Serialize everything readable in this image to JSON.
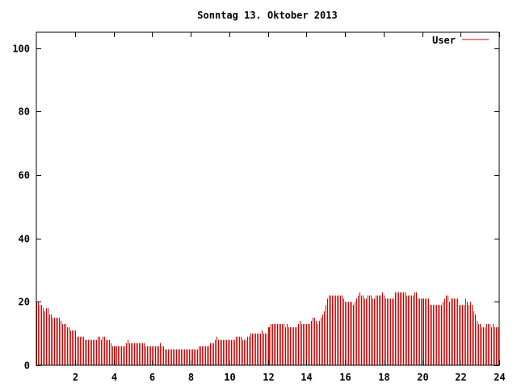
{
  "chart_data": {
    "type": "bar",
    "title": "Sonntag 13. Oktober 2013",
    "xlabel": "",
    "ylabel": "",
    "xlim": [
      0,
      24
    ],
    "ylim": [
      0,
      105
    ],
    "xticks": [
      2,
      4,
      6,
      8,
      10,
      12,
      14,
      16,
      18,
      20,
      22,
      24
    ],
    "yticks": [
      0,
      20,
      40,
      60,
      80,
      100
    ],
    "grid": false,
    "legend": "top-right",
    "series": [
      {
        "name": "User",
        "color": "#cc0000",
        "interval_minutes": 5,
        "values": [
          20,
          20,
          19,
          19,
          18,
          17,
          18,
          18,
          16,
          16,
          15,
          15,
          15,
          15,
          15,
          14,
          13,
          13,
          13,
          12,
          12,
          11,
          11,
          11,
          11,
          9,
          9,
          9,
          9,
          9,
          8,
          8,
          8,
          8,
          8,
          8,
          8,
          8,
          9,
          9,
          8,
          9,
          9,
          8,
          8,
          8,
          7,
          6,
          6,
          6,
          6,
          6,
          6,
          6,
          6,
          6,
          7,
          8,
          7,
          7,
          7,
          7,
          7,
          7,
          7,
          7,
          7,
          7,
          6,
          6,
          6,
          6,
          6,
          6,
          6,
          6,
          6,
          7,
          6,
          6,
          5,
          5,
          5,
          5,
          5,
          5,
          5,
          5,
          5,
          5,
          5,
          5,
          5,
          5,
          5,
          5,
          5,
          5,
          5,
          5,
          5,
          6,
          6,
          6,
          6,
          6,
          6,
          6,
          7,
          7,
          7,
          8,
          9,
          8,
          8,
          8,
          8,
          8,
          8,
          8,
          8,
          8,
          8,
          8,
          9,
          9,
          9,
          9,
          8,
          8,
          8,
          9,
          9,
          10,
          10,
          10,
          10,
          10,
          10,
          10,
          11,
          10,
          10,
          10,
          12,
          12,
          13,
          13,
          13,
          13,
          13,
          13,
          13,
          13,
          13,
          12,
          13,
          12,
          12,
          12,
          12,
          12,
          12,
          13,
          14,
          13,
          13,
          13,
          13,
          13,
          13,
          14,
          15,
          15,
          14,
          13,
          14,
          15,
          16,
          17,
          19,
          21,
          22,
          22,
          22,
          22,
          22,
          22,
          22,
          22,
          22,
          21,
          20,
          20,
          20,
          20,
          20,
          19,
          20,
          21,
          22,
          23,
          22,
          22,
          21,
          21,
          22,
          22,
          22,
          21,
          21,
          22,
          22,
          22,
          22,
          23,
          22,
          21,
          21,
          21,
          21,
          21,
          21,
          23,
          23,
          23,
          23,
          23,
          23,
          23,
          22,
          22,
          22,
          22,
          22,
          23,
          23,
          21,
          21,
          21,
          21,
          21,
          21,
          21,
          21,
          19,
          19,
          19,
          19,
          19,
          19,
          19,
          19,
          20,
          21,
          22,
          22,
          20,
          21,
          21,
          21,
          21,
          21,
          19,
          19,
          19,
          19,
          21,
          20,
          19,
          20,
          19,
          17,
          16,
          14,
          13,
          13,
          12,
          12,
          12,
          13,
          13,
          13,
          12,
          13,
          12,
          12,
          12
        ]
      }
    ]
  }
}
